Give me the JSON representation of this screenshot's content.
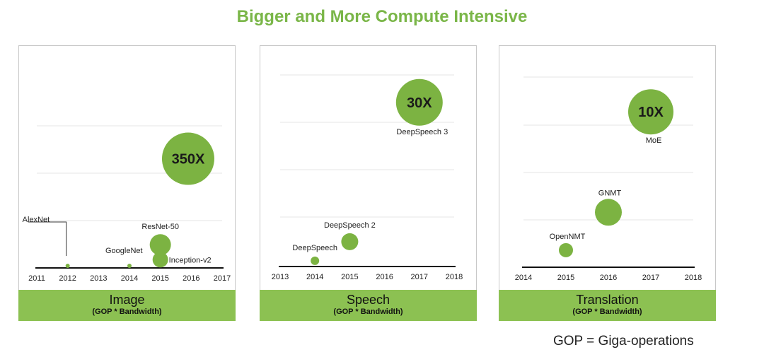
{
  "title": "Bigger and More Compute Intensive",
  "footnote": "GOP = Giga-operations",
  "colors": {
    "accent": "#7ab648",
    "bubble": "#7cb342",
    "footer": "#8cc152"
  },
  "chart_data": [
    {
      "type": "scatter",
      "title": "Image",
      "subtitle": "(GOP * Bandwidth)",
      "x_ticks": [
        "2011",
        "2012",
        "2013",
        "2014",
        "2015",
        "2016",
        "2017"
      ],
      "xlim": [
        2011,
        2017
      ],
      "multiplier": {
        "label": "350X",
        "x": 2015.9,
        "level": 0.66,
        "size": 37
      },
      "points": [
        {
          "label": "AlexNet",
          "x": 2012,
          "level": 0.0,
          "size": 3
        },
        {
          "label": "GoogleNet",
          "x": 2014,
          "level": 0.0,
          "size": 3
        },
        {
          "label": "Inception-v2",
          "x": 2015,
          "level": 0.05,
          "size": 11
        },
        {
          "label": "ResNet-50",
          "x": 2015,
          "level": 0.14,
          "size": 15
        }
      ]
    },
    {
      "type": "scatter",
      "title": "Speech",
      "subtitle": "(GOP * Bandwidth)",
      "x_ticks": [
        "2013",
        "2014",
        "2015",
        "2016",
        "2017",
        "2018"
      ],
      "xlim": [
        2013,
        2018
      ],
      "multiplier": {
        "label": "30X",
        "x": 2017,
        "level": 0.86,
        "size": 33,
        "caption": "DeepSpeech 3"
      },
      "points": [
        {
          "label": "DeepSpeech",
          "x": 2014,
          "level": 0.03,
          "size": 6
        },
        {
          "label": "DeepSpeech 2",
          "x": 2015,
          "level": 0.13,
          "size": 12
        }
      ]
    },
    {
      "type": "scatter",
      "title": "Translation",
      "subtitle": "(GOP * Bandwidth)",
      "x_ticks": [
        "2014",
        "2015",
        "2016",
        "2017",
        "2018"
      ],
      "xlim": [
        2014,
        2018
      ],
      "multiplier": {
        "label": "10X",
        "x": 2017,
        "level": 0.82,
        "size": 32,
        "caption": "MoE"
      },
      "points": [
        {
          "label": "OpenNMT",
          "x": 2015,
          "level": 0.09,
          "size": 10
        },
        {
          "label": "GNMT",
          "x": 2016,
          "level": 0.29,
          "size": 19
        }
      ]
    }
  ]
}
